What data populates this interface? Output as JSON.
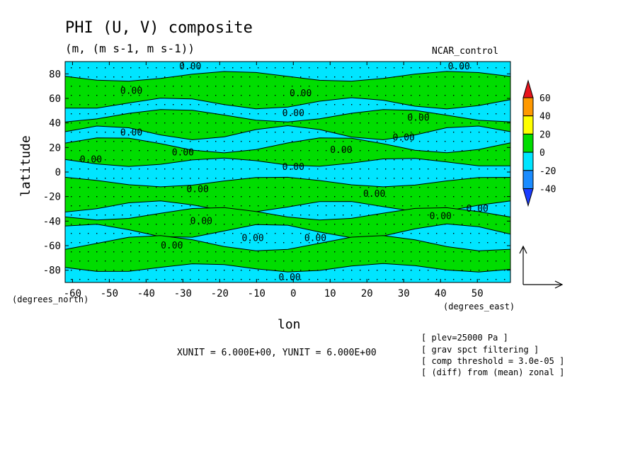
{
  "chart_data": {
    "type": "contour",
    "title": "PHI (U, V) composite",
    "subtitle": "(m, (m s-1, m s-1))",
    "run_label": "NCAR_control",
    "xlabel": "lon",
    "ylabel": "latitude",
    "x_units": "(degrees_east)",
    "y_units": "(degrees_north)",
    "x_ticks": [
      "-60",
      "-50",
      "-40",
      "-30",
      "-20",
      "-10",
      "0",
      "10",
      "20",
      "30",
      "40",
      "50"
    ],
    "y_ticks": [
      "80",
      "60",
      "40",
      "20",
      "0",
      "-20",
      "-40",
      "-60",
      "-80"
    ],
    "xlim": [
      -62,
      59
    ],
    "ylim": [
      -90,
      90
    ],
    "contour_level_label": "0.00",
    "colorbar": {
      "ticks": [
        "60",
        "40",
        "20",
        "0",
        "-20",
        "-40"
      ],
      "colors": [
        "#e8141c",
        "#ff9900",
        "#ffff00",
        "#00dd00",
        "#00e5ff",
        "#1a8cff",
        "#1a3cff"
      ]
    },
    "vector_scale": "XUNIT = 6.000E+00, YUNIT = 6.000E+00",
    "notes": [
      "[ plev=25000 Pa ]",
      "[ grav spct filtering ]",
      "[ comp threshold = 3.0e-05 ]",
      "[ (diff) from (mean) zonal ]"
    ],
    "bands": [
      {
        "lat_top": 78,
        "lat_bottom": 56,
        "sign": "+"
      },
      {
        "lat_top": 46,
        "lat_bottom": 32,
        "sign": "+"
      },
      {
        "lat_top": 22,
        "lat_bottom": 8,
        "sign": "+"
      },
      {
        "lat_top": -8,
        "lat_bottom": -28,
        "sign": "+"
      },
      {
        "lat_top": -34,
        "lat_bottom": -48,
        "sign": "+"
      },
      {
        "lat_top": -58,
        "lat_bottom": -78,
        "sign": "+"
      }
    ]
  }
}
